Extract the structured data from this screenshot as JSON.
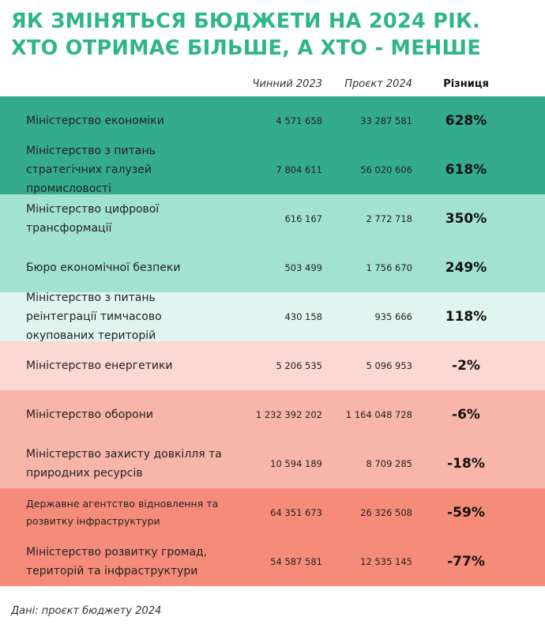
{
  "header": {
    "title": [
      "ЯК ЗМІНЯТЬСЯ БЮДЖЕТИ НА 2024 РІК.",
      "ХТО ОТРИМАЄ БІЛЬШЕ, А ХТО - МЕНШЕ"
    ]
  },
  "table": {
    "columns": [
      "Чинний 2023",
      "Проєкт 2024",
      "Різниця"
    ],
    "rows": [
      [
        "Міністерство економіки",
        "4 571 658",
        "33 287 581",
        "628%"
      ],
      [
        "Міністерство з питань стратегічних галузей промисловості",
        "7 804 611",
        "56 020 606",
        "618%"
      ],
      [
        "Міністерство цифрової трансформації",
        "616 167",
        "2 772 718",
        "350%"
      ],
      [
        "Бюро економічної безпеки",
        "503 499",
        "1 756 670",
        "249%"
      ],
      [
        "Міністерство з питань реінтеграції тимчасово окупованих територій",
        "430 158",
        "935 666",
        "118%"
      ],
      [
        "Міністерство енергетики",
        "5 206 535",
        "5 096 953",
        "-2%"
      ],
      [
        "Міністерство оборони",
        "1 232 392 202",
        "1 164 048 728",
        "-6%"
      ],
      [
        "Міністерство захисту довкілля та природних ресурсів",
        "10 594 189",
        "8 709 285",
        "-18%"
      ],
      [
        "Державне агентство відновлення та розвитку інфраструктури",
        "64 351 673",
        "26 326 508",
        "-59%"
      ],
      [
        "Міністерство розвитку громад, територій та інфраструктури",
        "54 587 581",
        "12 535 145",
        "-77%"
      ]
    ]
  },
  "footer": {
    "source": "Дані: проєкт бюджету 2024"
  }
}
